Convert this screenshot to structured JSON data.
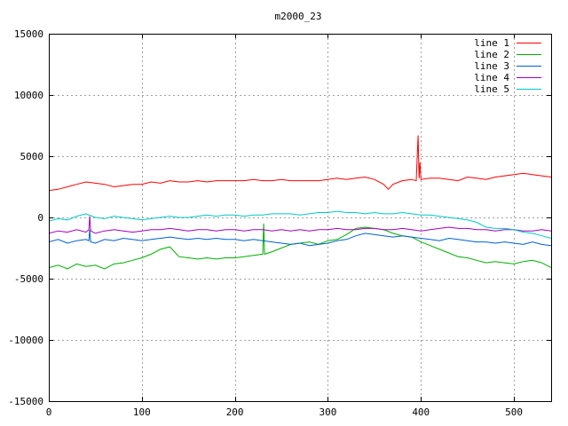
{
  "chart_data": {
    "type": "line",
    "title": "m2000_23",
    "xlabel": "",
    "ylabel": "",
    "xlim": [
      0,
      540
    ],
    "ylim": [
      -15000,
      15000
    ],
    "xticks": [
      0,
      100,
      200,
      300,
      400,
      500
    ],
    "yticks": [
      -15000,
      -10000,
      -5000,
      0,
      5000,
      10000,
      15000
    ],
    "grid": true,
    "legend_position": "top-right",
    "series": [
      {
        "name": "line 1",
        "color": "#ff0000",
        "x": [
          0,
          10,
          20,
          30,
          40,
          50,
          60,
          70,
          80,
          90,
          100,
          110,
          120,
          130,
          140,
          150,
          160,
          170,
          180,
          190,
          200,
          210,
          220,
          230,
          240,
          250,
          260,
          270,
          280,
          290,
          300,
          310,
          320,
          330,
          340,
          350,
          360,
          365,
          370,
          380,
          390,
          395,
          397,
          398,
          399,
          400,
          410,
          420,
          430,
          440,
          450,
          460,
          470,
          480,
          490,
          500,
          510,
          520,
          530,
          540
        ],
        "y": [
          2200,
          2300,
          2500,
          2700,
          2900,
          2800,
          2700,
          2500,
          2600,
          2700,
          2700,
          2900,
          2800,
          3000,
          2900,
          2900,
          3000,
          2900,
          3000,
          3000,
          3000,
          3000,
          3100,
          3000,
          3000,
          3100,
          3000,
          3000,
          3000,
          3000,
          3100,
          3200,
          3100,
          3200,
          3300,
          3100,
          2700,
          2300,
          2700,
          3000,
          3100,
          3000,
          6700,
          3200,
          4500,
          3100,
          3200,
          3200,
          3100,
          3000,
          3300,
          3200,
          3100,
          3300,
          3400,
          3500,
          3600,
          3500,
          3400,
          3300
        ]
      },
      {
        "name": "line 2",
        "color": "#00b000",
        "x": [
          0,
          10,
          20,
          30,
          40,
          50,
          60,
          70,
          80,
          90,
          100,
          110,
          120,
          130,
          140,
          150,
          160,
          170,
          180,
          190,
          200,
          210,
          220,
          230,
          231,
          232,
          240,
          250,
          260,
          270,
          280,
          290,
          300,
          310,
          320,
          330,
          340,
          350,
          360,
          370,
          380,
          390,
          400,
          410,
          420,
          430,
          440,
          450,
          460,
          470,
          480,
          490,
          500,
          510,
          520,
          530,
          540
        ],
        "y": [
          -4100,
          -3900,
          -4200,
          -3800,
          -4000,
          -3900,
          -4200,
          -3800,
          -3700,
          -3500,
          -3300,
          -3000,
          -2600,
          -2400,
          -3200,
          -3300,
          -3400,
          -3300,
          -3400,
          -3300,
          -3300,
          -3200,
          -3100,
          -3000,
          -500,
          -3000,
          -2800,
          -2500,
          -2200,
          -2100,
          -2000,
          -2200,
          -1900,
          -1800,
          -1400,
          -900,
          -800,
          -900,
          -1000,
          -1300,
          -1500,
          -1600,
          -2000,
          -2300,
          -2600,
          -2900,
          -3200,
          -3300,
          -3500,
          -3700,
          -3600,
          -3700,
          -3800,
          -3600,
          -3500,
          -3700,
          -4100
        ]
      },
      {
        "name": "line 3",
        "color": "#0060d0",
        "x": [
          0,
          10,
          20,
          30,
          40,
          43,
          44,
          45,
          50,
          60,
          70,
          80,
          90,
          100,
          110,
          120,
          130,
          140,
          150,
          160,
          170,
          180,
          190,
          200,
          210,
          220,
          230,
          240,
          250,
          260,
          270,
          280,
          290,
          300,
          310,
          320,
          330,
          340,
          350,
          360,
          370,
          380,
          390,
          400,
          410,
          420,
          430,
          440,
          450,
          460,
          470,
          480,
          490,
          500,
          510,
          520,
          530,
          540
        ],
        "y": [
          -2000,
          -1800,
          -2100,
          -1900,
          -1800,
          -1900,
          -1000,
          -2000,
          -2100,
          -1800,
          -1900,
          -1700,
          -1800,
          -1900,
          -1800,
          -1700,
          -1600,
          -1700,
          -1800,
          -1700,
          -1800,
          -1700,
          -1800,
          -1800,
          -1900,
          -1800,
          -1900,
          -2000,
          -2100,
          -2200,
          -2100,
          -2300,
          -2200,
          -2100,
          -1900,
          -1800,
          -1500,
          -1300,
          -1400,
          -1500,
          -1600,
          -1500,
          -1600,
          -1700,
          -1800,
          -1900,
          -1700,
          -1800,
          -1900,
          -2000,
          -2000,
          -2100,
          -2000,
          -2100,
          -2200,
          -2000,
          -2200,
          -2300
        ]
      },
      {
        "name": "line 4",
        "color": "#a000c0",
        "x": [
          0,
          10,
          20,
          30,
          40,
          43,
          44,
          45,
          50,
          60,
          70,
          80,
          90,
          100,
          110,
          120,
          130,
          140,
          150,
          160,
          170,
          180,
          190,
          200,
          210,
          220,
          230,
          240,
          250,
          260,
          270,
          280,
          290,
          300,
          310,
          320,
          330,
          340,
          350,
          360,
          370,
          380,
          390,
          400,
          410,
          420,
          430,
          440,
          450,
          460,
          470,
          480,
          490,
          500,
          510,
          520,
          530,
          540
        ],
        "y": [
          -1300,
          -1100,
          -1200,
          -1000,
          -1200,
          -1000,
          100,
          -1100,
          -1300,
          -1100,
          -1000,
          -1100,
          -1200,
          -1100,
          -1000,
          -1000,
          -900,
          -1000,
          -1100,
          -1000,
          -1000,
          -1100,
          -1000,
          -1000,
          -1100,
          -1000,
          -1000,
          -1100,
          -1000,
          -1100,
          -1000,
          -1100,
          -1000,
          -1000,
          -900,
          -1000,
          -1000,
          -900,
          -900,
          -1000,
          -1000,
          -900,
          -1000,
          -1100,
          -1000,
          -900,
          -800,
          -900,
          -900,
          -1000,
          -1000,
          -1100,
          -1000,
          -1000,
          -1100,
          -1100,
          -1000,
          -1100
        ]
      },
      {
        "name": "line 5",
        "color": "#00c8c8",
        "x": [
          0,
          10,
          20,
          30,
          40,
          50,
          60,
          70,
          80,
          90,
          100,
          110,
          120,
          130,
          140,
          150,
          160,
          170,
          180,
          190,
          200,
          210,
          220,
          230,
          240,
          250,
          260,
          270,
          280,
          290,
          300,
          310,
          320,
          330,
          340,
          350,
          360,
          370,
          380,
          390,
          400,
          410,
          420,
          430,
          440,
          450,
          460,
          470,
          480,
          490,
          500,
          510,
          520,
          530,
          540
        ],
        "y": [
          -300,
          -100,
          -200,
          100,
          300,
          0,
          -100,
          100,
          0,
          -100,
          -200,
          -100,
          0,
          100,
          0,
          0,
          100,
          200,
          100,
          200,
          200,
          100,
          200,
          200,
          300,
          300,
          300,
          200,
          300,
          400,
          400,
          500,
          400,
          400,
          300,
          400,
          300,
          300,
          400,
          300,
          200,
          200,
          100,
          0,
          -100,
          -200,
          -400,
          -800,
          -900,
          -900,
          -1000,
          -1200,
          -1300,
          -1500,
          -1700
        ]
      }
    ]
  }
}
